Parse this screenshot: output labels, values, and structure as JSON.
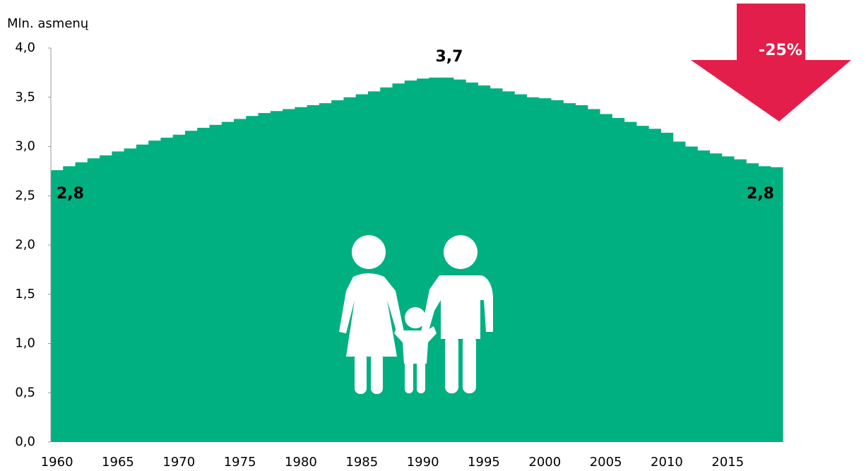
{
  "chart_data": {
    "type": "bar",
    "y_axis_title": "Mln. asmenų",
    "categories": [
      "1960",
      null,
      null,
      null,
      null,
      "1965",
      null,
      null,
      null,
      null,
      "1970",
      null,
      null,
      null,
      null,
      "1975",
      null,
      null,
      null,
      null,
      "1980",
      null,
      null,
      null,
      null,
      "1985",
      null,
      null,
      null,
      null,
      "1990",
      null,
      null,
      null,
      null,
      "1995",
      null,
      null,
      null,
      null,
      "2000",
      null,
      null,
      null,
      null,
      "2005",
      null,
      null,
      null,
      null,
      "2010",
      null,
      null,
      null,
      null,
      "2015",
      null,
      null,
      null,
      null
    ],
    "values": [
      2.76,
      2.8,
      2.84,
      2.88,
      2.91,
      2.95,
      2.98,
      3.02,
      3.06,
      3.09,
      3.12,
      3.16,
      3.19,
      3.22,
      3.25,
      3.28,
      3.31,
      3.34,
      3.36,
      3.38,
      3.4,
      3.42,
      3.44,
      3.47,
      3.5,
      3.53,
      3.56,
      3.6,
      3.64,
      3.67,
      3.69,
      3.7,
      3.7,
      3.68,
      3.65,
      3.62,
      3.59,
      3.56,
      3.53,
      3.5,
      3.49,
      3.47,
      3.44,
      3.42,
      3.38,
      3.33,
      3.29,
      3.25,
      3.21,
      3.18,
      3.14,
      3.05,
      3.0,
      2.96,
      2.93,
      2.9,
      2.87,
      2.83,
      2.8,
      2.79
    ],
    "color": "#00b080",
    "ylim": [
      0,
      4
    ],
    "yticks": [
      {
        "value": 0,
        "label": "0,0"
      },
      {
        "value": 0.5,
        "label": "0,5"
      },
      {
        "value": 1,
        "label": "1,0"
      },
      {
        "value": 1.5,
        "label": "1,5"
      },
      {
        "value": 2,
        "label": "2,0"
      },
      {
        "value": 2.5,
        "label": "2,5"
      },
      {
        "value": 3,
        "label": "3,0"
      },
      {
        "value": 3.5,
        "label": "3,5"
      },
      {
        "value": 4,
        "label": "4,0"
      }
    ],
    "grid": false,
    "annotations": [
      "2,8",
      "3,7",
      "2,8",
      "-25%"
    ],
    "arrow_color": "#e31e4a"
  }
}
